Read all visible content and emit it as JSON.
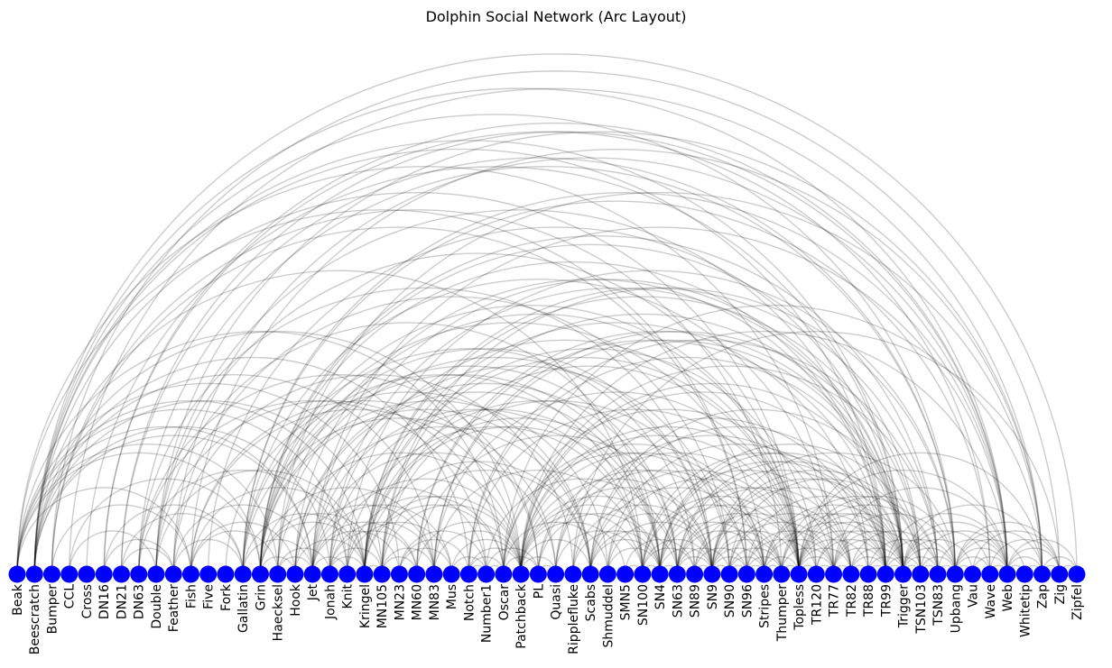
{
  "chart_data": {
    "type": "arc-diagram",
    "title": "Dolphin Social Network (Arc Layout)",
    "node_color": "#0000ff",
    "edge_color": "#000000",
    "nodes": [
      "Beak",
      "Beescratch",
      "Bumper",
      "CCL",
      "Cross",
      "DN16",
      "DN21",
      "DN63",
      "Double",
      "Feather",
      "Fish",
      "Five",
      "Fork",
      "Gallatin",
      "Grin",
      "Haecksel",
      "Hook",
      "Jet",
      "Jonah",
      "Knit",
      "Kringel",
      "MN105",
      "MN23",
      "MN60",
      "MN83",
      "Mus",
      "Notch",
      "Number1",
      "Oscar",
      "Patchback",
      "PL",
      "Quasi",
      "Ripplefluke",
      "Scabs",
      "Shmuddel",
      "SMN5",
      "SN100",
      "SN4",
      "SN63",
      "SN89",
      "SN9",
      "SN90",
      "SN96",
      "Stripes",
      "Thumper",
      "Topless",
      "TR120",
      "TR77",
      "TR82",
      "TR88",
      "TR99",
      "Trigger",
      "TSN103",
      "TSN83",
      "Upbang",
      "Vau",
      "Wave",
      "Web",
      "Whitetip",
      "Zap",
      "Zig",
      "Zipfel"
    ],
    "edges": [
      [
        "Beak",
        "Fish"
      ],
      [
        "Beak",
        "Grin"
      ],
      [
        "Beak",
        "Haecksel"
      ],
      [
        "Beak",
        "Jet"
      ],
      [
        "Beak",
        "Knit"
      ],
      [
        "Beak",
        "Kringel"
      ],
      [
        "Beak",
        "MN23"
      ],
      [
        "Beak",
        "Oscar"
      ],
      [
        "Beak",
        "SN96"
      ],
      [
        "Beak",
        "TR77"
      ],
      [
        "Beescratch",
        "Jet"
      ],
      [
        "Beescratch",
        "Jonah"
      ],
      [
        "Beescratch",
        "MN105"
      ],
      [
        "Beescratch",
        "MN83"
      ],
      [
        "Beescratch",
        "Notch"
      ],
      [
        "Beescratch",
        "Patchback"
      ],
      [
        "Beescratch",
        "SN100"
      ],
      [
        "Beescratch",
        "Topless"
      ],
      [
        "Beescratch",
        "TR99"
      ],
      [
        "Beescratch",
        "Trigger"
      ],
      [
        "Beescratch",
        "Upbang"
      ],
      [
        "Beescratch",
        "Web"
      ],
      [
        "Beescratch",
        "Zipfel"
      ],
      [
        "Bumper",
        "Fish"
      ],
      [
        "Bumper",
        "SN96"
      ],
      [
        "Bumper",
        "Thumper"
      ],
      [
        "Bumper",
        "Zig"
      ],
      [
        "CCL",
        "Double"
      ],
      [
        "CCL",
        "Grin"
      ],
      [
        "CCL",
        "Zap"
      ],
      [
        "Cross",
        "Trigger"
      ],
      [
        "DN16",
        "Feather"
      ],
      [
        "DN16",
        "Gallatin"
      ],
      [
        "DN16",
        "Web"
      ],
      [
        "DN16",
        "Wave"
      ],
      [
        "DN21",
        "Feather"
      ],
      [
        "DN21",
        "Gallatin"
      ],
      [
        "DN21",
        "Upbang"
      ],
      [
        "DN21",
        "Web"
      ],
      [
        "DN63",
        "Knit"
      ],
      [
        "DN63",
        "Number1"
      ],
      [
        "DN63",
        "PL"
      ],
      [
        "DN63",
        "SN9"
      ],
      [
        "DN63",
        "Upbang"
      ],
      [
        "Double",
        "Kringel"
      ],
      [
        "Double",
        "Oscar"
      ],
      [
        "Double",
        "SN4"
      ],
      [
        "Double",
        "Topless"
      ],
      [
        "Double",
        "TR99"
      ],
      [
        "Double",
        "Zap"
      ],
      [
        "Feather",
        "Gallatin"
      ],
      [
        "Feather",
        "Jet"
      ],
      [
        "Feather",
        "Ripplefluke"
      ],
      [
        "Feather",
        "SN90"
      ],
      [
        "Feather",
        "Web"
      ],
      [
        "Fish",
        "Haecksel"
      ],
      [
        "Fish",
        "Hook"
      ],
      [
        "Fish",
        "Kringel"
      ],
      [
        "Fish",
        "Patchback"
      ],
      [
        "Fish",
        "PL"
      ],
      [
        "Fish",
        "Zap"
      ],
      [
        "Five",
        "Trigger"
      ],
      [
        "Fork",
        "Scabs"
      ],
      [
        "Gallatin",
        "Jet"
      ],
      [
        "Gallatin",
        "Kringel"
      ],
      [
        "Gallatin",
        "Quasi"
      ],
      [
        "Gallatin",
        "SN100"
      ],
      [
        "Gallatin",
        "SN89"
      ],
      [
        "Gallatin",
        "TR77"
      ],
      [
        "Gallatin",
        "Wave"
      ],
      [
        "Gallatin",
        "Web"
      ],
      [
        "Grin",
        "Hook"
      ],
      [
        "Grin",
        "Kringel"
      ],
      [
        "Grin",
        "MN105"
      ],
      [
        "Grin",
        "MN83"
      ],
      [
        "Grin",
        "Scabs"
      ],
      [
        "Grin",
        "Shmuddel"
      ],
      [
        "Grin",
        "SN4"
      ],
      [
        "Grin",
        "SN63"
      ],
      [
        "Grin",
        "SN9"
      ],
      [
        "Grin",
        "Stripes"
      ],
      [
        "Grin",
        "Topless"
      ],
      [
        "Grin",
        "TR99"
      ],
      [
        "Grin",
        "TSN103"
      ],
      [
        "Grin",
        "TSN83"
      ],
      [
        "Haecksel",
        "Jet"
      ],
      [
        "Haecksel",
        "Jonah"
      ],
      [
        "Haecksel",
        "Patchback"
      ],
      [
        "Haecksel",
        "SN9"
      ],
      [
        "Haecksel",
        "Topless"
      ],
      [
        "Haecksel",
        "Zap"
      ],
      [
        "Hook",
        "Kringel"
      ],
      [
        "Hook",
        "MN83"
      ],
      [
        "Hook",
        "Scabs"
      ],
      [
        "Hook",
        "SN4"
      ],
      [
        "Hook",
        "SN63"
      ],
      [
        "Hook",
        "TR99"
      ],
      [
        "Jet",
        "Knit"
      ],
      [
        "Jet",
        "MN23"
      ],
      [
        "Jet",
        "MN60"
      ],
      [
        "Jet",
        "Mus"
      ],
      [
        "Jet",
        "Number1"
      ],
      [
        "Jet",
        "Quasi"
      ],
      [
        "Jet",
        "SN100"
      ],
      [
        "Jet",
        "SN90"
      ],
      [
        "Jet",
        "Trigger"
      ],
      [
        "Jet",
        "Web"
      ],
      [
        "Jonah",
        "Kringel"
      ],
      [
        "Jonah",
        "MN105"
      ],
      [
        "Jonah",
        "MN60"
      ],
      [
        "Jonah",
        "MN83"
      ],
      [
        "Jonah",
        "Patchback"
      ],
      [
        "Jonah",
        "SN4"
      ],
      [
        "Jonah",
        "Topless"
      ],
      [
        "Jonah",
        "Trigger"
      ],
      [
        "Knit",
        "Mus"
      ],
      [
        "Knit",
        "Oscar"
      ],
      [
        "Knit",
        "SN100"
      ],
      [
        "Knit",
        "Upbang"
      ],
      [
        "Kringel",
        "MN105"
      ],
      [
        "Kringel",
        "Oscar"
      ],
      [
        "Kringel",
        "Patchback"
      ],
      [
        "Kringel",
        "Scabs"
      ],
      [
        "Kringel",
        "SN4"
      ],
      [
        "Kringel",
        "SN63"
      ],
      [
        "Kringel",
        "SN9"
      ],
      [
        "Kringel",
        "Topless"
      ],
      [
        "Kringel",
        "TR120"
      ],
      [
        "Kringel",
        "TR88"
      ],
      [
        "Kringel",
        "TSN103"
      ],
      [
        "Kringel",
        "TSN83"
      ],
      [
        "MN105",
        "MN60"
      ],
      [
        "MN105",
        "MN83"
      ],
      [
        "MN105",
        "Patchback"
      ],
      [
        "MN105",
        "Scabs"
      ],
      [
        "MN105",
        "SN90"
      ],
      [
        "MN105",
        "Topless"
      ],
      [
        "MN105",
        "Trigger"
      ],
      [
        "MN105",
        "Upbang"
      ],
      [
        "MN23",
        "Mus"
      ],
      [
        "MN23",
        "Notch"
      ],
      [
        "MN23",
        "Number1"
      ],
      [
        "MN60",
        "Patchback"
      ],
      [
        "MN60",
        "SN89"
      ],
      [
        "MN60",
        "Trigger"
      ],
      [
        "MN60",
        "TR99"
      ],
      [
        "MN83",
        "Patchback"
      ],
      [
        "MN83",
        "SN100"
      ],
      [
        "MN83",
        "Topless"
      ],
      [
        "MN83",
        "Trigger"
      ],
      [
        "MN83",
        "TSN103"
      ],
      [
        "Mus",
        "Number1"
      ],
      [
        "Mus",
        "Patchback"
      ],
      [
        "Notch",
        "Number1"
      ],
      [
        "Notch",
        "Oscar"
      ],
      [
        "Notch",
        "Patchback"
      ],
      [
        "Notch",
        "Topless"
      ],
      [
        "Notch",
        "Trigger"
      ],
      [
        "Notch",
        "TSN83"
      ],
      [
        "Number1",
        "Oscar"
      ],
      [
        "Number1",
        "PL"
      ],
      [
        "Number1",
        "SN63"
      ],
      [
        "Oscar",
        "PL"
      ],
      [
        "Oscar",
        "Shmuddel"
      ],
      [
        "Oscar",
        "SN96"
      ],
      [
        "Oscar",
        "Stripes"
      ],
      [
        "Oscar",
        "TR77"
      ],
      [
        "Oscar",
        "Zap"
      ],
      [
        "Patchback",
        "Quasi"
      ],
      [
        "Patchback",
        "Scabs"
      ],
      [
        "Patchback",
        "SMN5"
      ],
      [
        "Patchback",
        "SN100"
      ],
      [
        "Patchback",
        "SN4"
      ],
      [
        "Patchback",
        "SN63"
      ],
      [
        "Patchback",
        "SN9"
      ],
      [
        "Patchback",
        "Stripes"
      ],
      [
        "Patchback",
        "Topless"
      ],
      [
        "Patchback",
        "TR120"
      ],
      [
        "Patchback",
        "TR99"
      ],
      [
        "Patchback",
        "Trigger"
      ],
      [
        "Patchback",
        "TSN83"
      ],
      [
        "Patchback",
        "Web"
      ],
      [
        "PL",
        "Quasi"
      ],
      [
        "PL",
        "SN4"
      ],
      [
        "PL",
        "SN9"
      ],
      [
        "PL",
        "SN96"
      ],
      [
        "Quasi",
        "SN100"
      ],
      [
        "Quasi",
        "Stripes"
      ],
      [
        "Quasi",
        "Topless"
      ],
      [
        "Quasi",
        "TR88"
      ],
      [
        "Ripplefluke",
        "SN4"
      ],
      [
        "Ripplefluke",
        "SN9"
      ],
      [
        "Ripplefluke",
        "TR82"
      ],
      [
        "Ripplefluke",
        "Zig"
      ],
      [
        "Scabs",
        "SN4"
      ],
      [
        "Scabs",
        "SN63"
      ],
      [
        "Scabs",
        "SN9"
      ],
      [
        "Scabs",
        "Stripes"
      ],
      [
        "Scabs",
        "Topless"
      ],
      [
        "Scabs",
        "TR99"
      ],
      [
        "Scabs",
        "TSN103"
      ],
      [
        "Shmuddel",
        "SN4"
      ],
      [
        "Shmuddel",
        "SN9"
      ],
      [
        "Shmuddel",
        "Topless"
      ],
      [
        "Shmuddel",
        "TR88"
      ],
      [
        "SMN5",
        "SN100"
      ],
      [
        "SMN5",
        "SN89"
      ],
      [
        "SN100",
        "SN4"
      ],
      [
        "SN100",
        "SN89"
      ],
      [
        "SN100",
        "SN9"
      ],
      [
        "SN100",
        "Thumper"
      ],
      [
        "SN100",
        "Topless"
      ],
      [
        "SN100",
        "TR82"
      ],
      [
        "SN100",
        "TR99"
      ],
      [
        "SN4",
        "SN63"
      ],
      [
        "SN4",
        "SN9"
      ],
      [
        "SN4",
        "Stripes"
      ],
      [
        "SN4",
        "Topless"
      ],
      [
        "SN4",
        "TR77"
      ],
      [
        "SN4",
        "TR99"
      ],
      [
        "SN4",
        "Trigger"
      ],
      [
        "SN4",
        "TSN103"
      ],
      [
        "SN63",
        "SN9"
      ],
      [
        "SN63",
        "SN90"
      ],
      [
        "SN63",
        "Stripes"
      ],
      [
        "SN63",
        "Thumper"
      ],
      [
        "SN63",
        "Topless"
      ],
      [
        "SN63",
        "TR82"
      ],
      [
        "SN63",
        "TR99"
      ],
      [
        "SN63",
        "Trigger"
      ],
      [
        "SN89",
        "SN9"
      ],
      [
        "SN89",
        "SN96"
      ],
      [
        "SN89",
        "Thumper"
      ],
      [
        "SN89",
        "TR120"
      ],
      [
        "SN9",
        "SN90"
      ],
      [
        "SN9",
        "SN96"
      ],
      [
        "SN9",
        "Stripes"
      ],
      [
        "SN9",
        "Thumper"
      ],
      [
        "SN9",
        "Topless"
      ],
      [
        "SN9",
        "TR82"
      ],
      [
        "SN9",
        "TR99"
      ],
      [
        "SN9",
        "Trigger"
      ],
      [
        "SN9",
        "TSN103"
      ],
      [
        "SN9",
        "Upbang"
      ],
      [
        "SN90",
        "SN96"
      ],
      [
        "SN90",
        "Stripes"
      ],
      [
        "SN90",
        "Thumper"
      ],
      [
        "SN90",
        "TR77"
      ],
      [
        "SN90",
        "TR82"
      ],
      [
        "SN90",
        "TSN103"
      ],
      [
        "SN96",
        "Stripes"
      ],
      [
        "SN96",
        "Thumper"
      ],
      [
        "SN96",
        "TR120"
      ],
      [
        "SN96",
        "TR77"
      ],
      [
        "SN96",
        "Trigger"
      ],
      [
        "Stripes",
        "Thumper"
      ],
      [
        "Stripes",
        "Topless"
      ],
      [
        "Stripes",
        "TR77"
      ],
      [
        "Stripes",
        "TR82"
      ],
      [
        "Stripes",
        "TR99"
      ],
      [
        "Stripes",
        "Trigger"
      ],
      [
        "Thumper",
        "Topless"
      ],
      [
        "Thumper",
        "TR77"
      ],
      [
        "Thumper",
        "TR99"
      ],
      [
        "Thumper",
        "Trigger"
      ],
      [
        "Thumper",
        "TSN83"
      ],
      [
        "Topless",
        "TR120"
      ],
      [
        "Topless",
        "TR77"
      ],
      [
        "Topless",
        "TR82"
      ],
      [
        "Topless",
        "TR88"
      ],
      [
        "Topless",
        "TR99"
      ],
      [
        "Topless",
        "Trigger"
      ],
      [
        "Topless",
        "TSN103"
      ],
      [
        "Topless",
        "TSN83"
      ],
      [
        "Topless",
        "Upbang"
      ],
      [
        "Topless",
        "Web"
      ],
      [
        "Topless",
        "Zap"
      ],
      [
        "TR120",
        "TR77"
      ],
      [
        "TR120",
        "TR99"
      ],
      [
        "TR120",
        "Trigger"
      ],
      [
        "TR77",
        "TR82"
      ],
      [
        "TR77",
        "TR99"
      ],
      [
        "TR77",
        "Trigger"
      ],
      [
        "TR77",
        "TSN103"
      ],
      [
        "TR77",
        "Upbang"
      ],
      [
        "TR77",
        "Web"
      ],
      [
        "TR82",
        "TR88"
      ],
      [
        "TR82",
        "TR99"
      ],
      [
        "TR82",
        "Trigger"
      ],
      [
        "TR82",
        "TSN83"
      ],
      [
        "TR88",
        "TR99"
      ],
      [
        "TR88",
        "Trigger"
      ],
      [
        "TR88",
        "TSN83"
      ],
      [
        "TR99",
        "Trigger"
      ],
      [
        "TR99",
        "TSN103"
      ],
      [
        "TR99",
        "Upbang"
      ],
      [
        "TR99",
        "Web"
      ],
      [
        "Trigger",
        "TSN103"
      ],
      [
        "Trigger",
        "TSN83"
      ],
      [
        "Trigger",
        "Upbang"
      ],
      [
        "Trigger",
        "Vau"
      ],
      [
        "Trigger",
        "Wave"
      ],
      [
        "Trigger",
        "Web"
      ],
      [
        "Trigger",
        "Zap"
      ],
      [
        "TSN103",
        "TSN83"
      ],
      [
        "TSN103",
        "Upbang"
      ],
      [
        "TSN103",
        "Web"
      ],
      [
        "TSN83",
        "Upbang"
      ],
      [
        "TSN83",
        "Web"
      ],
      [
        "Upbang",
        "Vau"
      ],
      [
        "Upbang",
        "Wave"
      ],
      [
        "Upbang",
        "Web"
      ],
      [
        "Upbang",
        "Whitetip"
      ],
      [
        "Upbang",
        "Zap"
      ],
      [
        "Upbang",
        "Zig"
      ],
      [
        "Vau",
        "Web"
      ],
      [
        "Vau",
        "Zig"
      ],
      [
        "Wave",
        "Web"
      ],
      [
        "Wave",
        "Zig"
      ],
      [
        "Web",
        "Whitetip"
      ],
      [
        "Web",
        "Zap"
      ],
      [
        "Web",
        "Zig"
      ],
      [
        "Web",
        "Zipfel"
      ],
      [
        "Whitetip",
        "Zap"
      ],
      [
        "Zap",
        "Zig"
      ],
      [
        "Zap",
        "Zipfel"
      ],
      [
        "Zig",
        "Zipfel"
      ]
    ]
  }
}
